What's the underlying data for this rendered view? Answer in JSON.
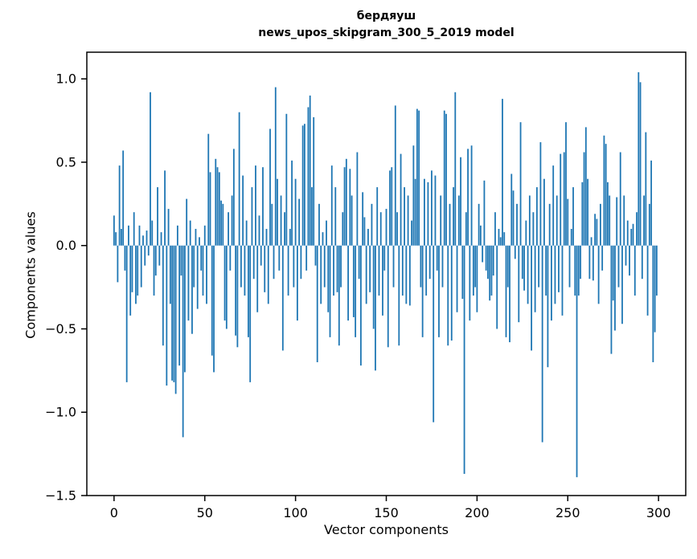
{
  "page": {
    "background": "#ffffff"
  },
  "chart_data": {
    "type": "bar",
    "title_line1": "бердяуш",
    "title_line2": "news_upos_skipgram_300_5_2019 model",
    "xlabel": "Vector components",
    "ylabel": "Components values",
    "x_start": 0,
    "xlim": [
      -15,
      315
    ],
    "ylim": [
      -1.5,
      1.16
    ],
    "xticks": [
      0,
      50,
      100,
      150,
      200,
      250,
      300
    ],
    "ytick_labels": [
      "1.0",
      "0.5",
      "0.0",
      "−0.5",
      "−1.0",
      "−1.5"
    ],
    "ytick_values": [
      1.0,
      0.5,
      0.0,
      -0.5,
      -1.0,
      -1.5
    ],
    "grid": false,
    "legend": "none",
    "bar_color": "#1f77b4",
    "bar_width": 0.8,
    "axis_color": "#000000",
    "values": [
      0.18,
      0.08,
      -0.22,
      0.48,
      0.1,
      0.57,
      -0.15,
      -0.82,
      0.12,
      -0.42,
      -0.28,
      0.2,
      -0.35,
      -0.3,
      0.12,
      -0.25,
      0.06,
      -0.12,
      0.09,
      -0.06,
      0.92,
      0.15,
      -0.3,
      -0.18,
      0.35,
      -0.12,
      0.08,
      -0.6,
      0.45,
      -0.84,
      0.22,
      -0.35,
      -0.81,
      -0.82,
      -0.89,
      0.12,
      -0.72,
      -0.18,
      -1.15,
      -0.76,
      0.28,
      -0.45,
      0.15,
      -0.53,
      -0.25,
      0.1,
      -0.38,
      0.05,
      -0.15,
      -0.3,
      0.12,
      -0.35,
      0.67,
      0.44,
      -0.66,
      -0.76,
      0.52,
      0.47,
      0.44,
      0.27,
      0.25,
      -0.45,
      -0.5,
      0.2,
      -0.15,
      0.3,
      0.58,
      -0.54,
      -0.61,
      0.8,
      -0.25,
      0.42,
      -0.3,
      0.15,
      -0.55,
      -0.82,
      0.35,
      -0.2,
      0.48,
      -0.4,
      0.18,
      -0.12,
      0.47,
      -0.28,
      0.1,
      -0.35,
      0.7,
      0.25,
      -0.2,
      0.95,
      0.4,
      -0.15,
      0.3,
      -0.63,
      0.2,
      0.79,
      -0.3,
      0.1,
      0.51,
      -0.25,
      0.4,
      -0.45,
      0.28,
      -0.2,
      0.72,
      0.73,
      -0.15,
      0.83,
      0.9,
      0.35,
      0.77,
      -0.12,
      -0.7,
      0.25,
      -0.35,
      0.08,
      -0.25,
      0.15,
      -0.4,
      -0.55,
      0.48,
      -0.3,
      0.35,
      -0.28,
      -0.6,
      -0.25,
      0.2,
      0.47,
      0.52,
      -0.45,
      0.46,
      0.3,
      -0.43,
      -0.55,
      0.56,
      -0.2,
      -0.72,
      0.32,
      0.17,
      -0.35,
      0.1,
      -0.28,
      0.25,
      -0.5,
      -0.75,
      0.35,
      -0.3,
      0.2,
      -0.42,
      -0.15,
      0.22,
      -0.61,
      0.45,
      0.47,
      -0.25,
      0.84,
      0.2,
      -0.6,
      0.55,
      -0.3,
      0.35,
      -0.35,
      0.3,
      -0.36,
      0.15,
      0.6,
      0.4,
      0.82,
      0.81,
      -0.25,
      -0.55,
      0.4,
      -0.3,
      0.38,
      -0.2,
      0.45,
      -1.06,
      0.42,
      -0.15,
      -0.55,
      0.3,
      -0.25,
      0.81,
      0.79,
      -0.6,
      0.25,
      -0.57,
      0.35,
      0.92,
      -0.4,
      0.3,
      0.53,
      -0.32,
      -1.37,
      0.2,
      0.58,
      -0.45,
      0.6,
      -0.3,
      -0.25,
      -0.4,
      0.25,
      0.12,
      -0.1,
      0.39,
      -0.15,
      -0.2,
      -0.33,
      -0.3,
      -0.18,
      0.2,
      -0.5,
      0.1,
      0.05,
      0.88,
      0.08,
      -0.55,
      -0.25,
      -0.58,
      0.43,
      0.33,
      -0.08,
      0.25,
      -0.46,
      0.74,
      -0.2,
      -0.27,
      0.15,
      -0.35,
      0.3,
      -0.63,
      0.2,
      -0.4,
      0.35,
      -0.25,
      0.62,
      -1.18,
      0.4,
      -0.3,
      -0.73,
      0.25,
      -0.45,
      0.48,
      -0.35,
      0.3,
      -0.28,
      0.55,
      -0.42,
      0.56,
      0.74,
      0.28,
      -0.25,
      0.1,
      0.35,
      -0.3,
      -1.39,
      -0.3,
      -0.2,
      0.38,
      0.56,
      0.71,
      0.4,
      -0.2,
      0.05,
      -0.21,
      0.19,
      0.16,
      -0.35,
      0.25,
      -0.15,
      0.66,
      0.61,
      0.38,
      0.3,
      -0.65,
      -0.33,
      -0.51,
      0.29,
      -0.25,
      0.56,
      -0.47,
      0.3,
      -0.12,
      0.15,
      -0.18,
      0.1,
      0.13,
      -0.3,
      0.2,
      1.04,
      0.98,
      -0.2,
      0.3,
      0.68,
      -0.42,
      0.25,
      0.51,
      -0.7,
      -0.52,
      -0.3
    ]
  }
}
